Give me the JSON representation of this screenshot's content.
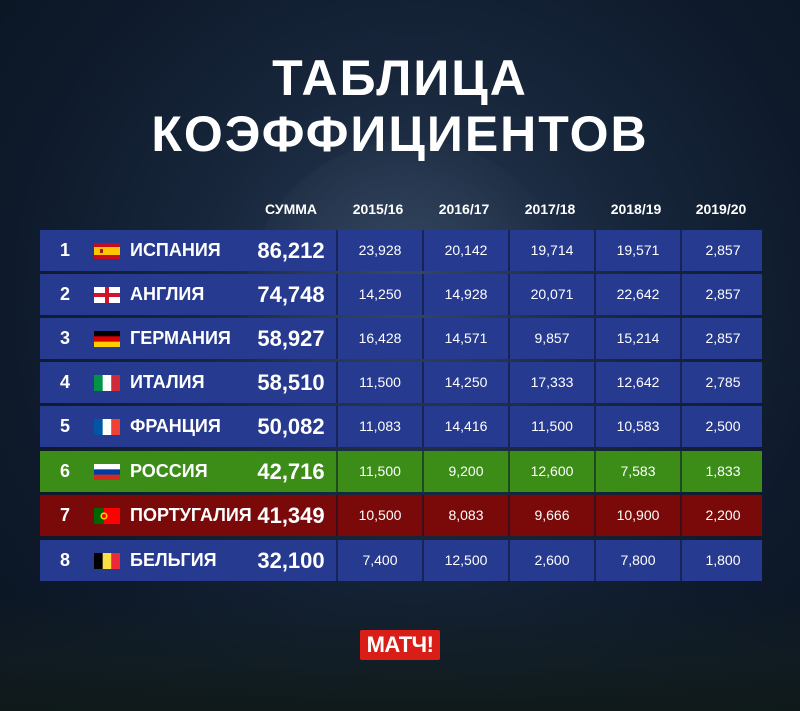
{
  "title": {
    "line1": "ТАБЛИЦА",
    "line2": "КОЭФФИЦИЕНТОВ"
  },
  "headers": {
    "sum": "СУММА",
    "seasons": [
      "2015/16",
      "2016/17",
      "2017/18",
      "2018/19",
      "2019/20"
    ]
  },
  "colors": {
    "blue": "#263a8f",
    "green": "#3b8d17",
    "red": "#7a0a0a"
  },
  "rows": [
    {
      "rank": "1",
      "country": "ИСПАНИЯ",
      "flag": "spain-flag-icon",
      "sum": "86,212",
      "values": [
        "23,928",
        "20,142",
        "19,714",
        "19,571",
        "2,857"
      ],
      "color": "#263a8f"
    },
    {
      "rank": "2",
      "country": "АНГЛИЯ",
      "flag": "england-flag-icon",
      "sum": "74,748",
      "values": [
        "14,250",
        "14,928",
        "20,071",
        "22,642",
        "2,857"
      ],
      "color": "#263a8f"
    },
    {
      "rank": "3",
      "country": "ГЕРМАНИЯ",
      "flag": "germany-flag-icon",
      "sum": "58,927",
      "values": [
        "16,428",
        "14,571",
        "9,857",
        "15,214",
        "2,857"
      ],
      "color": "#263a8f"
    },
    {
      "rank": "4",
      "country": "ИТАЛИЯ",
      "flag": "italy-flag-icon",
      "sum": "58,510",
      "values": [
        "11,500",
        "14,250",
        "17,333",
        "12,642",
        "2,785"
      ],
      "color": "#263a8f"
    },
    {
      "rank": "5",
      "country": "ФРАНЦИЯ",
      "flag": "france-flag-icon",
      "sum": "50,082",
      "values": [
        "11,083",
        "14,416",
        "11,500",
        "10,583",
        "2,500"
      ],
      "color": "#263a8f"
    },
    {
      "rank": "6",
      "country": "РОССИЯ",
      "flag": "russia-flag-icon",
      "sum": "42,716",
      "values": [
        "11,500",
        "9,200",
        "12,600",
        "7,583",
        "1,833"
      ],
      "color": "#3b8d17"
    },
    {
      "rank": "7",
      "country": "ПОРТУГАЛИЯ",
      "flag": "portugal-flag-icon",
      "sum": "41,349",
      "values": [
        "10,500",
        "8,083",
        "9,666",
        "10,900",
        "2,200"
      ],
      "color": "#7a0a0a"
    },
    {
      "rank": "8",
      "country": "БЕЛЬГИЯ",
      "flag": "belgium-flag-icon",
      "sum": "32,100",
      "values": [
        "7,400",
        "12,500",
        "2,600",
        "7,800",
        "1,800"
      ],
      "color": "#263a8f"
    }
  ],
  "logo": {
    "text": "МАТЧ!"
  }
}
